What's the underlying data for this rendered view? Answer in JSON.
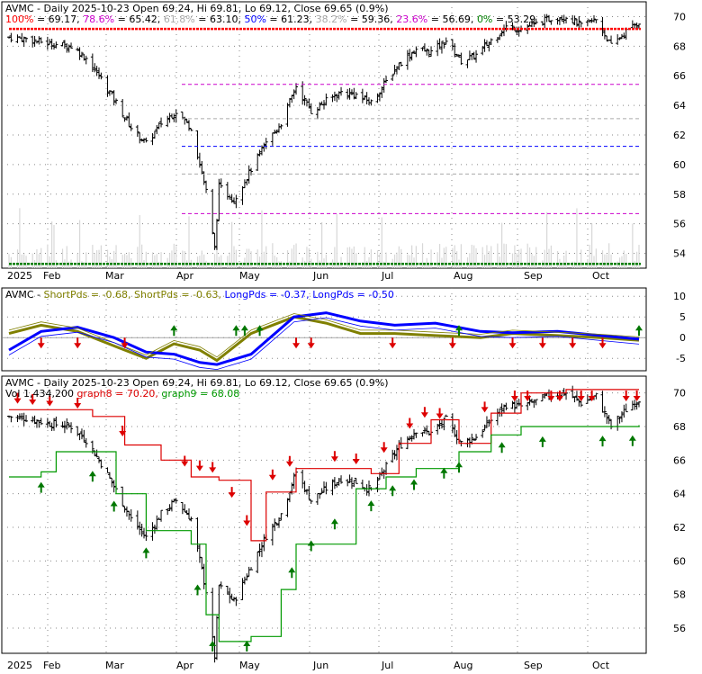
{
  "colors": {
    "background": "#ffffff",
    "panel_border": "#000000",
    "grid": "#888888",
    "bar": "#000000",
    "volume": "#d8d8d8",
    "fib": [
      "#ff0000",
      "#cc00cc",
      "#aaaaaa",
      "#0000ff",
      "#aaaaaa",
      "#cc00cc",
      "#008000"
    ],
    "short_pds": "#808000",
    "long_pds": "#0000ff",
    "graph8": "#dd0000",
    "graph9": "#009900",
    "arrow_up": "#007700",
    "arrow_down": "#dd0000"
  },
  "x_axis": {
    "labels": [
      "2025",
      "Feb",
      "Mar",
      "Apr",
      "May",
      "Jun",
      "Jul",
      "Aug",
      "Sep",
      "Oct"
    ]
  },
  "chart_data": [
    {
      "type": "ohlc",
      "title": "AVMC - Daily 2025-10-23 Open 69.24, Hi 69.81, Lo 69.12, Close 69.65 (0.9%)",
      "fib_legend": [
        {
          "label": "100%",
          "value": "69.17",
          "color": "#ff0000"
        },
        {
          "label": "78.6%",
          "value": "65.42",
          "color": "#cc00cc"
        },
        {
          "label": "61.8%",
          "value": "63.10",
          "color": "#aaaaaa"
        },
        {
          "label": "50%",
          "value": "61.23",
          "color": "#0000ff"
        },
        {
          "label": "38.2%",
          "value": "59.36",
          "color": "#aaaaaa"
        },
        {
          "label": "23.6%",
          "value": "56.69",
          "color": "#cc00cc"
        },
        {
          "label": "0%",
          "value": "53.29",
          "color": "#008000"
        }
      ],
      "ylim": [
        53,
        71
      ],
      "y_ticks": [
        54,
        56,
        58,
        60,
        62,
        64,
        66,
        68,
        70
      ],
      "close_points": [
        {
          "x": "2025-01-02",
          "y": 68.6
        },
        {
          "x": "2025-01-10",
          "y": 68.5
        },
        {
          "x": "2025-01-20",
          "y": 68.2
        },
        {
          "x": "2025-01-31",
          "y": 68.0
        },
        {
          "x": "2025-02-07",
          "y": 67.2
        },
        {
          "x": "2025-02-14",
          "y": 65.8
        },
        {
          "x": "2025-02-21",
          "y": 64.2
        },
        {
          "x": "2025-02-28",
          "y": 62.5
        },
        {
          "x": "2025-03-07",
          "y": 61.4
        },
        {
          "x": "2025-03-14",
          "y": 62.8
        },
        {
          "x": "2025-03-21",
          "y": 63.6
        },
        {
          "x": "2025-03-28",
          "y": 62.5
        },
        {
          "x": "2025-04-04",
          "y": 58.2
        },
        {
          "x": "2025-04-08",
          "y": 54.3
        },
        {
          "x": "2025-04-10",
          "y": 58.5
        },
        {
          "x": "2025-04-17",
          "y": 57.6
        },
        {
          "x": "2025-04-25",
          "y": 59.7
        },
        {
          "x": "2025-05-02",
          "y": 61.5
        },
        {
          "x": "2025-05-09",
          "y": 62.8
        },
        {
          "x": "2025-05-16",
          "y": 65.3
        },
        {
          "x": "2025-05-23",
          "y": 63.6
        },
        {
          "x": "2025-05-30",
          "y": 64.3
        },
        {
          "x": "2025-06-06",
          "y": 64.9
        },
        {
          "x": "2025-06-13",
          "y": 64.7
        },
        {
          "x": "2025-06-20",
          "y": 64.2
        },
        {
          "x": "2025-06-27",
          "y": 65.6
        },
        {
          "x": "2025-07-03",
          "y": 66.8
        },
        {
          "x": "2025-07-11",
          "y": 67.8
        },
        {
          "x": "2025-07-18",
          "y": 67.6
        },
        {
          "x": "2025-07-25",
          "y": 68.4
        },
        {
          "x": "2025-08-01",
          "y": 67.0
        },
        {
          "x": "2025-08-08",
          "y": 67.4
        },
        {
          "x": "2025-08-15",
          "y": 68.4
        },
        {
          "x": "2025-08-22",
          "y": 69.3
        },
        {
          "x": "2025-08-29",
          "y": 69.2
        },
        {
          "x": "2025-09-05",
          "y": 69.5
        },
        {
          "x": "2025-09-12",
          "y": 69.9
        },
        {
          "x": "2025-09-19",
          "y": 70.0
        },
        {
          "x": "2025-09-26",
          "y": 69.4
        },
        {
          "x": "2025-10-03",
          "y": 69.8
        },
        {
          "x": "2025-10-10",
          "y": 68.0
        },
        {
          "x": "2025-10-17",
          "y": 69.0
        },
        {
          "x": "2025-10-23",
          "y": 69.65
        }
      ]
    },
    {
      "type": "line",
      "title": "AVMC - ShortPds = -0.68, ShortPds = -0.63, LongPds = -0.37, LongPds = -0.50",
      "title_parts": [
        {
          "text": "AVMC - ",
          "color": "#000000"
        },
        {
          "text": "ShortPds = -0.68, ",
          "color": "#808000"
        },
        {
          "text": "ShortPds = -0.63, ",
          "color": "#808000"
        },
        {
          "text": "LongPds = -0.37, ",
          "color": "#0000ff"
        },
        {
          "text": "LongPds = -0.50",
          "color": "#0000ff"
        }
      ],
      "ylim": [
        -8,
        12
      ],
      "y_ticks": [
        -5,
        0,
        5,
        10
      ],
      "series": [
        {
          "name": "ShortPds",
          "color": "#808000",
          "x": [
            "2025-01-02",
            "2025-01-17",
            "2025-02-03",
            "2025-02-20",
            "2025-03-07",
            "2025-03-20",
            "2025-04-01",
            "2025-04-09",
            "2025-04-25",
            "2025-05-15",
            "2025-05-30",
            "2025-06-15",
            "2025-07-01",
            "2025-07-20",
            "2025-08-10",
            "2025-08-25",
            "2025-09-15",
            "2025-10-05",
            "2025-10-23"
          ],
          "y": [
            1,
            3,
            1.5,
            -2,
            -5,
            -1.5,
            -3,
            -5.5,
            1,
            5,
            3.5,
            1,
            1,
            0.5,
            0,
            1,
            0.5,
            0,
            -0.63
          ]
        },
        {
          "name": "LongPds",
          "color": "#0000ff",
          "x": [
            "2025-01-02",
            "2025-01-17",
            "2025-02-03",
            "2025-02-20",
            "2025-03-07",
            "2025-03-20",
            "2025-04-01",
            "2025-04-09",
            "2025-04-25",
            "2025-05-15",
            "2025-05-30",
            "2025-06-15",
            "2025-07-01",
            "2025-07-20",
            "2025-08-10",
            "2025-08-25",
            "2025-09-15",
            "2025-10-05",
            "2025-10-23"
          ],
          "y": [
            -3,
            1.5,
            2.5,
            0,
            -3.5,
            -4,
            -6,
            -6.5,
            -4,
            5,
            6,
            4,
            3,
            3.5,
            1.5,
            1.2,
            1.5,
            0.5,
            -0.37
          ]
        }
      ],
      "markers_up": [
        "2025-03-20",
        "2025-04-18",
        "2025-04-22",
        "2025-04-29",
        "2025-07-31",
        "2025-10-23"
      ],
      "markers_down": [
        "2025-01-17",
        "2025-02-03",
        "2025-02-25",
        "2025-05-16",
        "2025-05-23",
        "2025-06-30",
        "2025-07-28",
        "2025-08-25",
        "2025-09-08",
        "2025-09-22",
        "2025-10-06"
      ]
    },
    {
      "type": "ohlc",
      "title": "AVMC - Daily 2025-10-23 Open 69.24, Hi 69.81, Lo 69.12, Close 69.65 (0.9%)",
      "subtitle_parts": [
        {
          "text": "Vol 1,434,200 ",
          "color": "#000000"
        },
        {
          "text": "graph8 = 70.20, ",
          "color": "#dd0000"
        },
        {
          "text": "graph9 = 68.08",
          "color": "#009900"
        }
      ],
      "ylim": [
        54.5,
        71
      ],
      "y_ticks": [
        56,
        58,
        60,
        62,
        64,
        66,
        68,
        70
      ],
      "series": [
        {
          "name": "graph8",
          "color": "#dd0000",
          "x": [
            "2025-01-02",
            "2025-02-10",
            "2025-02-25",
            "2025-03-14",
            "2025-03-28",
            "2025-04-10",
            "2025-04-25",
            "2025-05-02",
            "2025-05-16",
            "2025-06-06",
            "2025-06-20",
            "2025-07-03",
            "2025-07-18",
            "2025-07-31",
            "2025-08-15",
            "2025-08-29",
            "2025-09-19",
            "2025-10-23"
          ],
          "y": [
            69.0,
            68.6,
            66.9,
            66.0,
            65.0,
            64.8,
            61.2,
            64.1,
            65.5,
            65.5,
            65.2,
            67.0,
            68.4,
            67.0,
            68.8,
            70.0,
            70.2,
            70.2
          ]
        },
        {
          "name": "graph9",
          "color": "#009900",
          "x": [
            "2025-01-02",
            "2025-01-17",
            "2025-01-24",
            "2025-02-07",
            "2025-02-21",
            "2025-03-07",
            "2025-03-28",
            "2025-04-04",
            "2025-04-10",
            "2025-04-25",
            "2025-05-09",
            "2025-05-16",
            "2025-06-13",
            "2025-06-27",
            "2025-07-11",
            "2025-07-31",
            "2025-08-15",
            "2025-08-29",
            "2025-10-23"
          ],
          "y": [
            65.0,
            65.3,
            66.5,
            66.5,
            64.0,
            61.8,
            61.0,
            56.8,
            55.2,
            55.5,
            58.3,
            61.0,
            64.3,
            65.0,
            65.5,
            66.5,
            67.5,
            68.0,
            68.08
          ]
        }
      ],
      "markers_up": [
        "2025-01-17",
        "2025-02-10",
        "2025-02-20",
        "2025-03-07",
        "2025-03-31",
        "2025-04-07",
        "2025-04-23",
        "2025-05-14",
        "2025-05-23",
        "2025-06-03",
        "2025-06-20",
        "2025-06-30",
        "2025-07-10",
        "2025-07-24",
        "2025-07-31",
        "2025-08-20",
        "2025-09-08",
        "2025-10-06",
        "2025-10-20"
      ],
      "markers_down": [
        "2025-01-06",
        "2025-01-13",
        "2025-01-21",
        "2025-02-03",
        "2025-02-24",
        "2025-03-25",
        "2025-04-01",
        "2025-04-07",
        "2025-04-16",
        "2025-04-23",
        "2025-05-05",
        "2025-05-13",
        "2025-06-03",
        "2025-06-13",
        "2025-06-26",
        "2025-07-08",
        "2025-07-15",
        "2025-07-22",
        "2025-08-12",
        "2025-08-26",
        "2025-09-01",
        "2025-09-12",
        "2025-09-16",
        "2025-09-26",
        "2025-10-01",
        "2025-10-17",
        "2025-10-22"
      ]
    }
  ]
}
